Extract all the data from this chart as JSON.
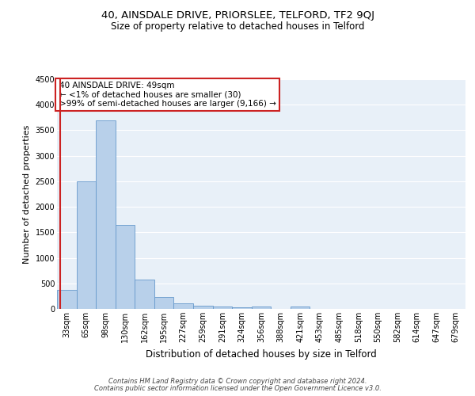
{
  "title": "40, AINSDALE DRIVE, PRIORSLEE, TELFORD, TF2 9QJ",
  "subtitle": "Size of property relative to detached houses in Telford",
  "xlabel": "Distribution of detached houses by size in Telford",
  "ylabel": "Number of detached properties",
  "categories": [
    "33sqm",
    "65sqm",
    "98sqm",
    "130sqm",
    "162sqm",
    "195sqm",
    "227sqm",
    "259sqm",
    "291sqm",
    "324sqm",
    "356sqm",
    "388sqm",
    "421sqm",
    "453sqm",
    "485sqm",
    "518sqm",
    "550sqm",
    "582sqm",
    "614sqm",
    "647sqm",
    "679sqm"
  ],
  "values": [
    380,
    2500,
    3700,
    1640,
    580,
    240,
    110,
    60,
    40,
    25,
    40,
    0,
    50,
    0,
    0,
    0,
    0,
    0,
    0,
    0,
    0
  ],
  "bar_color": "#b8d0ea",
  "bar_edge_color": "#6699cc",
  "highlight_line_color": "#cc2222",
  "annotation_text": "40 AINSDALE DRIVE: 49sqm\n← <1% of detached houses are smaller (30)\n>99% of semi-detached houses are larger (9,166) →",
  "annotation_box_color": "white",
  "annotation_box_edge_color": "#cc2222",
  "ylim": [
    0,
    4500
  ],
  "yticks": [
    0,
    500,
    1000,
    1500,
    2000,
    2500,
    3000,
    3500,
    4000,
    4500
  ],
  "background_color": "#e8f0f8",
  "grid_color": "white",
  "footer1": "Contains HM Land Registry data © Crown copyright and database right 2024.",
  "footer2": "Contains public sector information licensed under the Open Government Licence v3.0.",
  "title_fontsize": 9.5,
  "subtitle_fontsize": 8.5,
  "xlabel_fontsize": 8.5,
  "ylabel_fontsize": 8,
  "tick_fontsize": 7,
  "annotation_fontsize": 7.5,
  "footer_fontsize": 6
}
